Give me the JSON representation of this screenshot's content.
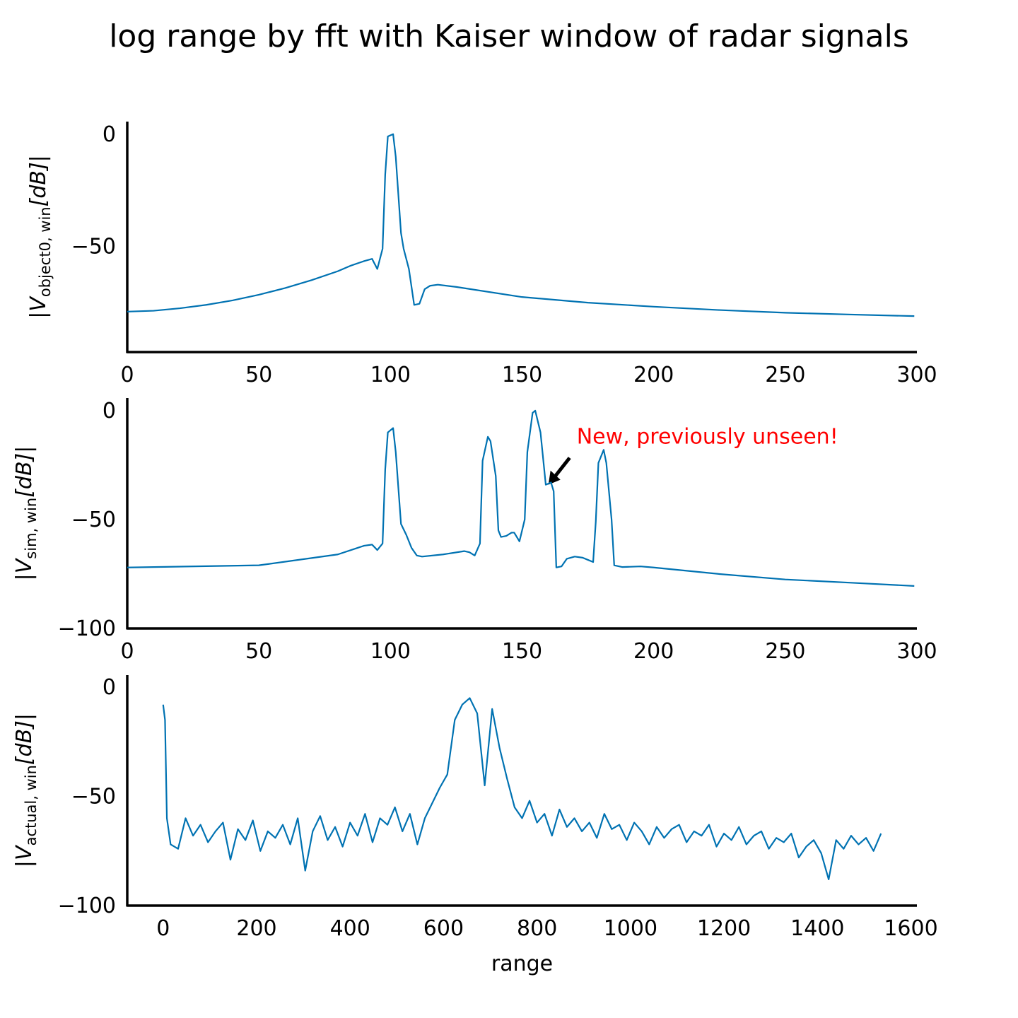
{
  "title": "log range by fft with Kaiser window of radar signals",
  "chart_data": [
    {
      "type": "line",
      "color": "#0072b2",
      "ylabel": [
        "|V",
        "object0, win",
        "[dB]|"
      ],
      "x": [
        0,
        10,
        20,
        30,
        40,
        50,
        60,
        70,
        80,
        85,
        90,
        93,
        95,
        97,
        98,
        99,
        101,
        102,
        104,
        105,
        107,
        109,
        111,
        113,
        115,
        118,
        125,
        150,
        175,
        200,
        225,
        250,
        275,
        299
      ],
      "values": [
        -79,
        -78.6,
        -77.5,
        -76,
        -74,
        -71.5,
        -68.5,
        -65,
        -61,
        -58.5,
        -56.5,
        -55.5,
        -60,
        -51,
        -18,
        -1,
        0,
        -10,
        -44,
        -51,
        -60,
        -76,
        -75.5,
        -69,
        -67.5,
        -67,
        -68,
        -72.5,
        -75,
        -76.8,
        -78.3,
        -79.5,
        -80.3,
        -81
      ],
      "xlim": [
        0,
        300
      ],
      "xticks": [
        0,
        50,
        100,
        150,
        200,
        250,
        300
      ],
      "ylim": [
        -97,
        5.6
      ],
      "yticks": [
        0,
        {
          "value": -50,
          "label": "−50"
        }
      ]
    },
    {
      "type": "line",
      "color": "#0072b2",
      "ylabel": [
        "|V",
        "sim, win",
        "[dB]|"
      ],
      "x": [
        0,
        50,
        80,
        90,
        93,
        95,
        97,
        98,
        99,
        101,
        102,
        104,
        106,
        108,
        110,
        112,
        120,
        128,
        130,
        132,
        134,
        135,
        137,
        138,
        140,
        141,
        142,
        144,
        146,
        147,
        149,
        151,
        152,
        154,
        155,
        157,
        159,
        161,
        162,
        163,
        165,
        167,
        170,
        173,
        175,
        177,
        178,
        179,
        181,
        182,
        184,
        185,
        188,
        195,
        200,
        225,
        250,
        275,
        299
      ],
      "values": [
        -72,
        -71,
        -66,
        -62,
        -61.5,
        -64,
        -61,
        -27,
        -10,
        -8,
        -19,
        -52,
        -57,
        -63,
        -66.5,
        -67,
        -66,
        -64.5,
        -65,
        -66.5,
        -61,
        -23,
        -12,
        -14,
        -30,
        -55,
        -58,
        -57.5,
        -56,
        -56,
        -60,
        -50,
        -19,
        -1,
        0,
        -10,
        -34,
        -33,
        -37,
        -72,
        -71.5,
        -68,
        -67,
        -67.5,
        -68.5,
        -69.5,
        -51,
        -24,
        -18,
        -24,
        -50,
        -71,
        -71.8,
        -71.5,
        -72,
        -75,
        -77.5,
        -79,
        -80.5
      ],
      "annotation": {
        "text": "New, previously unseen!",
        "x": 160,
        "y": -34
      },
      "xlim": [
        0,
        300
      ],
      "xticks": [
        0,
        50,
        100,
        150,
        200,
        250,
        300
      ],
      "ylim": [
        -100,
        5.8
      ],
      "yticks": [
        0,
        {
          "value": -50,
          "label": "−50"
        },
        {
          "value": -100,
          "label": "−100"
        }
      ]
    },
    {
      "type": "line",
      "color": "#0072b2",
      "ylabel": [
        "|V",
        "actual, win",
        "[dB]|"
      ],
      "xlabel": "range",
      "x": [
        0,
        4,
        8,
        16,
        32,
        48,
        64,
        80,
        96,
        112,
        128,
        144,
        160,
        176,
        192,
        208,
        224,
        240,
        256,
        272,
        288,
        304,
        320,
        336,
        352,
        368,
        384,
        400,
        416,
        432,
        448,
        464,
        480,
        496,
        512,
        528,
        544,
        560,
        576,
        592,
        608,
        624,
        640,
        656,
        672,
        688,
        704,
        720,
        736,
        752,
        768,
        784,
        800,
        816,
        832,
        848,
        864,
        880,
        896,
        912,
        928,
        944,
        960,
        976,
        992,
        1008,
        1024,
        1040,
        1056,
        1072,
        1088,
        1104,
        1120,
        1136,
        1152,
        1168,
        1184,
        1200,
        1216,
        1232,
        1248,
        1264,
        1280,
        1296,
        1312,
        1328,
        1344,
        1360,
        1376,
        1392,
        1408,
        1424,
        1440,
        1456,
        1472,
        1488,
        1504,
        1520,
        1536
      ],
      "values": [
        -8,
        -15,
        -60,
        -72,
        -74,
        -60,
        -68,
        -63,
        -71,
        -66,
        -62,
        -79,
        -65,
        -70,
        -61,
        -75,
        -66,
        -69,
        -63,
        -72,
        -60,
        -84,
        -66,
        -59,
        -70,
        -64,
        -73,
        -62,
        -68,
        -58,
        -71,
        -60,
        -63,
        -55,
        -66,
        -58,
        -72,
        -60,
        -53,
        -46,
        -40,
        -15,
        -8,
        -5,
        -12,
        -45,
        -10,
        -28,
        -42,
        -55,
        -60,
        -52,
        -62,
        -58,
        -68,
        -56,
        -64,
        -60,
        -66,
        -62,
        -69,
        -58,
        -65,
        -63,
        -70,
        -62,
        -66,
        -72,
        -64,
        -69,
        -65,
        -63,
        -71,
        -66,
        -68,
        -63,
        -73,
        -67,
        -70,
        -64,
        -72,
        -68,
        -66,
        -74,
        -69,
        -71,
        -67,
        -78,
        -73,
        -70,
        -76,
        -88,
        -70,
        -74,
        -68,
        -72,
        -69,
        -75,
        -67
      ],
      "xlim": [
        -76.8,
        1612.8
      ],
      "xticks": [
        0,
        200,
        400,
        600,
        800,
        1000,
        1200,
        1400,
        1600
      ],
      "ylim": [
        -100,
        5.5
      ],
      "yticks": [
        0,
        {
          "value": -50,
          "label": "−50"
        },
        {
          "value": -100,
          "label": "−100"
        }
      ]
    }
  ]
}
